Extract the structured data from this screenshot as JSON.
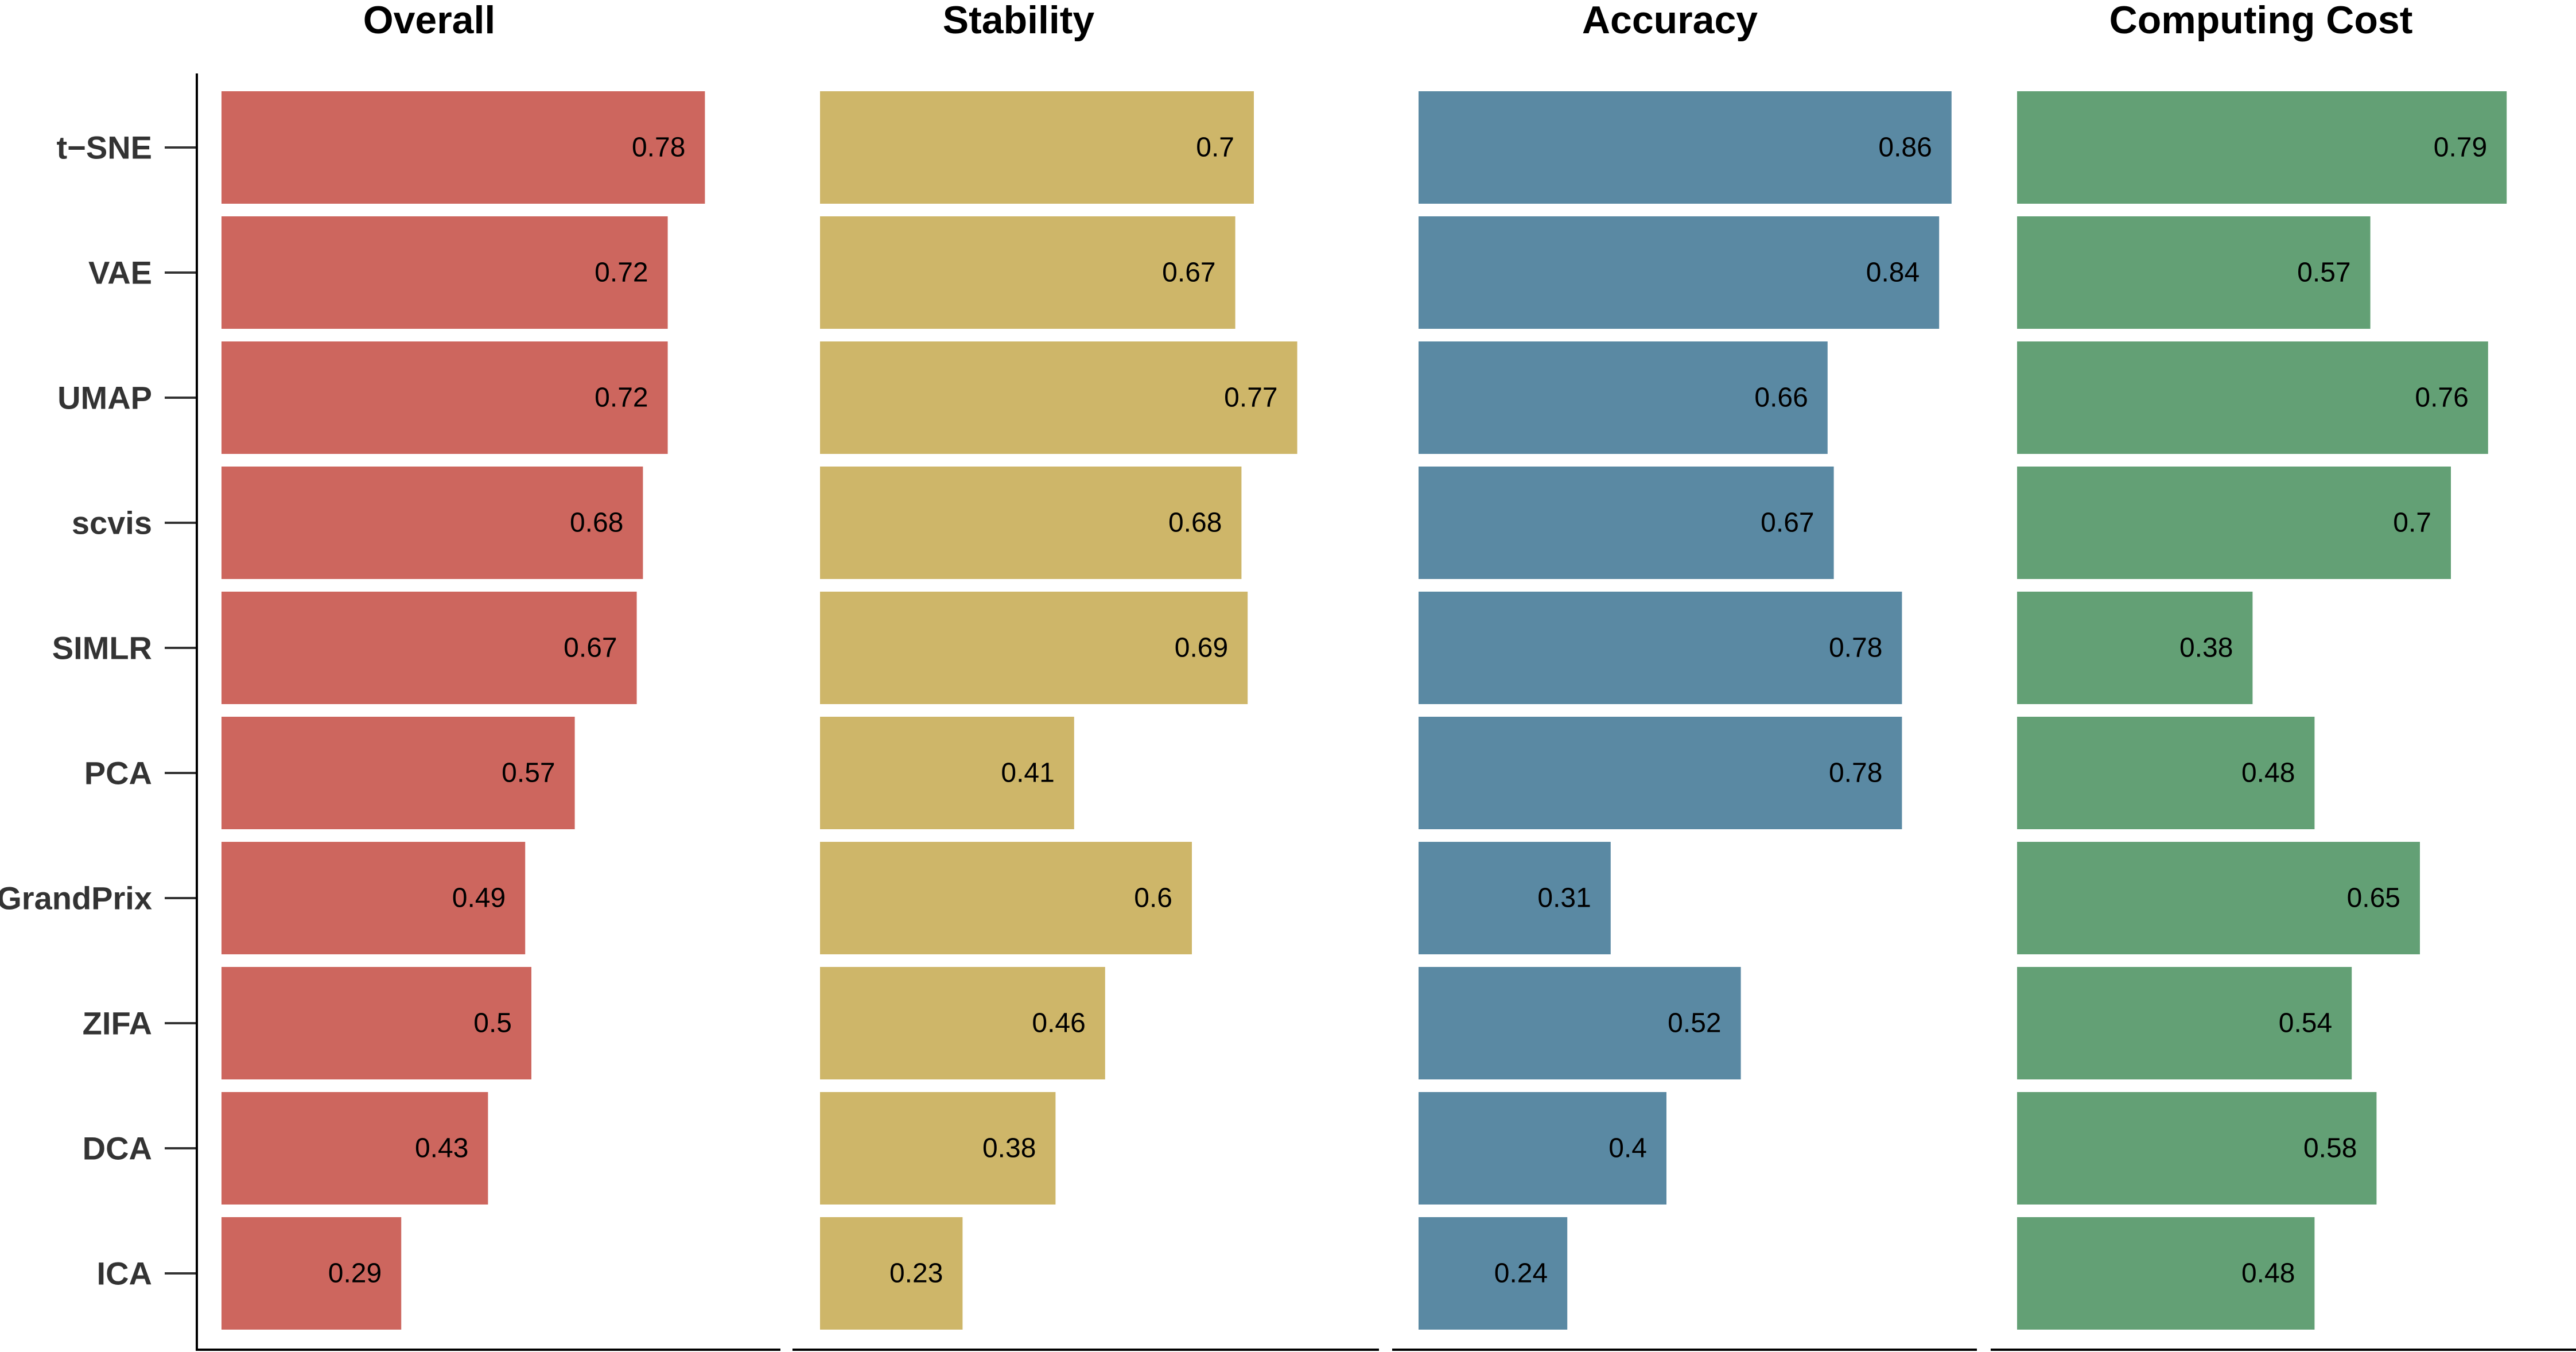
{
  "chart_data": {
    "type": "bar",
    "orientation": "horizontal",
    "categories": [
      "t−SNE",
      "VAE",
      "UMAP",
      "scvis",
      "SIMLR",
      "PCA",
      "GrandPrix",
      "ZIFA",
      "DCA",
      "ICA"
    ],
    "xlim": [
      0,
      1
    ],
    "panels": [
      {
        "title": "Overall",
        "color": "#CD665E",
        "values": [
          0.78,
          0.72,
          0.72,
          0.68,
          0.67,
          0.57,
          0.49,
          0.5,
          0.43,
          0.29
        ]
      },
      {
        "title": "Stability",
        "color": "#CEB669",
        "values": [
          0.7,
          0.67,
          0.77,
          0.68,
          0.69,
          0.41,
          0.6,
          0.46,
          0.38,
          0.23
        ]
      },
      {
        "title": "Accuracy",
        "color": "#5A89A3",
        "values": [
          0.86,
          0.84,
          0.66,
          0.67,
          0.78,
          0.78,
          0.31,
          0.52,
          0.4,
          0.24
        ]
      },
      {
        "title": "Computing Cost",
        "color": "#63A075",
        "values": [
          0.79,
          0.57,
          0.76,
          0.7,
          0.38,
          0.48,
          0.65,
          0.54,
          0.58,
          0.48
        ]
      }
    ]
  }
}
